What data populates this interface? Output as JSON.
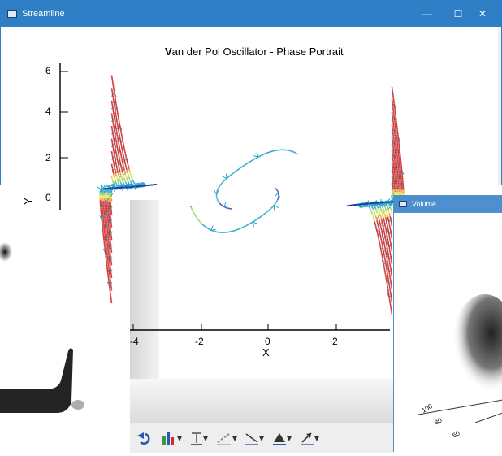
{
  "streamline_window": {
    "title": "Streamline",
    "controls": {
      "minimize": "—",
      "maximize": "☐",
      "close": "✕"
    },
    "accent": "#2f7fc6"
  },
  "plot": {
    "title_bold_char": "V",
    "title_rest": "an der Pol Oscillator - Phase Portrait",
    "xlabel": "X",
    "ylabel": "Y",
    "y_ticks": [
      "6",
      "4",
      "2",
      "0"
    ],
    "x_ticks": [
      "-4",
      "-2",
      "0",
      "2"
    ]
  },
  "chart_data": {
    "type": "streamline",
    "title": "Van der Pol Oscillator - Phase Portrait",
    "xlabel": "X",
    "ylabel": "Y",
    "x_ticks": [
      -4,
      -2,
      0,
      2
    ],
    "y_ticks": [
      0,
      2,
      4,
      6
    ],
    "xlim": [
      -4.8,
      4.8
    ],
    "ylim": [
      -6,
      6
    ],
    "colormap": [
      "#2a3aa0",
      "#2aa7c9",
      "#9fd46a",
      "#f2e64a",
      "#f0a23a",
      "#d02a2a"
    ]
  },
  "volume_window": {
    "title": "Volume",
    "axis_ticks": [
      "100",
      "80",
      "60"
    ]
  },
  "toolbar": {
    "items": [
      "undo-icon",
      "bar-chart-icon",
      "text-icon",
      "line-style-icon",
      "line-icon",
      "fill-icon",
      "arrow-icon"
    ],
    "dropdown": "▾"
  }
}
